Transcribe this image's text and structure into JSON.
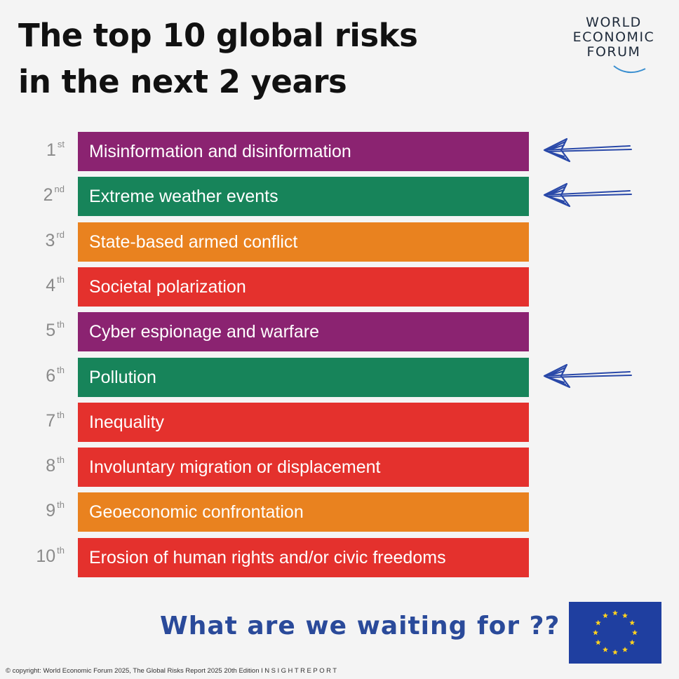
{
  "title_lines": [
    "The top 10 global risks",
    "in the next 2 years"
  ],
  "logo": {
    "lines": [
      "WORLD",
      "ECONOMIC",
      "FORUM"
    ]
  },
  "colors": {
    "purple": "#8b2371",
    "green": "#17845a",
    "orange": "#e9821f",
    "red": "#e4312d",
    "arrow": "#2948a8"
  },
  "risks": [
    {
      "num": "1",
      "suffix": "st",
      "label": "Misinformation and disinformation",
      "color": "#8b2371",
      "arrow": true
    },
    {
      "num": "2",
      "suffix": "nd",
      "label": "Extreme weather events",
      "color": "#17845a",
      "arrow": true
    },
    {
      "num": "3",
      "suffix": "rd",
      "label": "State-based armed conflict",
      "color": "#e9821f",
      "arrow": false
    },
    {
      "num": "4",
      "suffix": "th",
      "label": "Societal polarization",
      "color": "#e4312d",
      "arrow": false
    },
    {
      "num": "5",
      "suffix": "th",
      "label": "Cyber espionage and warfare",
      "color": "#8b2371",
      "arrow": false
    },
    {
      "num": "6",
      "suffix": "th",
      "label": "Pollution",
      "color": "#17845a",
      "arrow": true
    },
    {
      "num": "7",
      "suffix": "th",
      "label": "Inequality",
      "color": "#e4312d",
      "arrow": false
    },
    {
      "num": "8",
      "suffix": "th",
      "label": "Involuntary migration or displacement",
      "color": "#e4312d",
      "arrow": false
    },
    {
      "num": "9",
      "suffix": "th",
      "label": "Geoeconomic confrontation",
      "color": "#e9821f",
      "arrow": false
    },
    {
      "num": "10",
      "suffix": "th",
      "label": "Erosion of human rights and/or civic freedoms",
      "color": "#e4312d",
      "arrow": false
    }
  ],
  "slogan": "What are we waiting for ??",
  "footer": {
    "copyright": "© copyright: World Economic Forum 2025, The Global Risks Report 2025 20th Edition",
    "insight": "INSIGHTREPORT"
  },
  "flag": {
    "name": "eu-flag-icon",
    "background": "#1f3fa0",
    "star_color": "#ffd21f",
    "star_count": 12
  }
}
